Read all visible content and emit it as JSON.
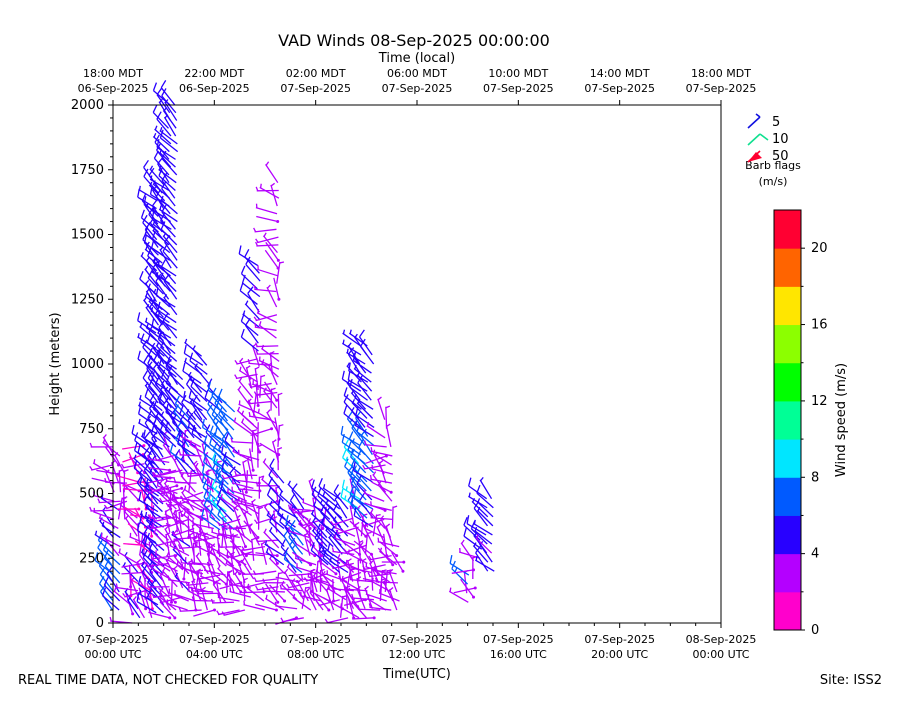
{
  "chart_data": {
    "type": "wind-barb",
    "title": "VAD Winds 08-Sep-2025 00:00:00",
    "xlabel_bottom": "Time(UTC)",
    "xlabel_top": "Time (local)",
    "ylabel": "Height (meters)",
    "ylim": [
      0,
      2000
    ],
    "y_ticks": [
      "0",
      "250",
      "500",
      "750",
      "1000",
      "1250",
      "1500",
      "1750",
      "2000"
    ],
    "x_ticks_bottom": [
      {
        "line1": "07-Sep-2025",
        "line2": "00:00 UTC"
      },
      {
        "line1": "07-Sep-2025",
        "line2": "04:00 UTC"
      },
      {
        "line1": "07-Sep-2025",
        "line2": "08:00 UTC"
      },
      {
        "line1": "07-Sep-2025",
        "line2": "12:00 UTC"
      },
      {
        "line1": "07-Sep-2025",
        "line2": "16:00 UTC"
      },
      {
        "line1": "07-Sep-2025",
        "line2": "20:00 UTC"
      },
      {
        "line1": "08-Sep-2025",
        "line2": "00:00 UTC"
      }
    ],
    "x_ticks_top": [
      {
        "line1": "18:00 MDT",
        "line2": "06-Sep-2025"
      },
      {
        "line1": "22:00 MDT",
        "line2": "06-Sep-2025"
      },
      {
        "line1": "02:00 MDT",
        "line2": "07-Sep-2025"
      },
      {
        "line1": "06:00 MDT",
        "line2": "07-Sep-2025"
      },
      {
        "line1": "10:00 MDT",
        "line2": "07-Sep-2025"
      },
      {
        "line1": "14:00 MDT",
        "line2": "07-Sep-2025"
      },
      {
        "line1": "18:00 MDT",
        "line2": "07-Sep-2025"
      }
    ],
    "legend": {
      "placement": "top-right",
      "entries": [
        {
          "label": "5",
          "color": "#1010e0"
        },
        {
          "label": "10",
          "color": "#10e090"
        },
        {
          "label": "50",
          "color": "#ff0030"
        }
      ],
      "caption_line1": "Barb flags",
      "caption_line2": "(m/s)"
    },
    "colorbar": {
      "label": "Wind speed (m/s)",
      "range": [
        0,
        22
      ],
      "ticks": [
        "0",
        "4",
        "8",
        "12",
        "16",
        "20"
      ],
      "colors": [
        "#ff00cc",
        "#b400ff",
        "#2800ff",
        "#005aff",
        "#00e6ff",
        "#00ff96",
        "#00ff00",
        "#8cff00",
        "#ffe600",
        "#ff6400",
        "#ff0032"
      ]
    },
    "columns": [
      {
        "t": 0.0,
        "h0": 50,
        "h1": 700,
        "s": [
          7,
          4,
          3
        ]
      },
      {
        "t": 0.25,
        "h0": 50,
        "h1": 650,
        "s": [
          6,
          4,
          3
        ]
      },
      {
        "t": 0.5,
        "h0": 400,
        "h1": 600,
        "s": [
          3,
          3,
          3
        ]
      },
      {
        "t": 0.75,
        "h0": 0,
        "h1": 150,
        "s": [
          3,
          3,
          2
        ]
      },
      {
        "t": 1.0,
        "h0": 20,
        "h1": 600,
        "s": [
          4,
          3,
          2
        ]
      },
      {
        "t": 1.25,
        "h0": 20,
        "h1": 700,
        "s": [
          3,
          2,
          2
        ]
      },
      {
        "t": 1.5,
        "h0": 20,
        "h1": 700,
        "s": [
          2,
          2,
          5
        ]
      },
      {
        "t": 1.75,
        "h0": 40,
        "h1": 1700,
        "s": [
          5,
          5,
          5
        ]
      },
      {
        "t": 2.0,
        "h0": 40,
        "h1": 1700,
        "s": [
          5,
          5,
          5
        ]
      },
      {
        "t": 2.25,
        "h0": 20,
        "h1": 2000,
        "s": [
          3,
          5,
          5
        ]
      },
      {
        "t": 2.5,
        "h0": 20,
        "h1": 2000,
        "s": [
          3,
          5,
          5
        ]
      },
      {
        "t": 2.75,
        "h0": 100,
        "h1": 950,
        "s": [
          3,
          3,
          5
        ]
      },
      {
        "t": 3.0,
        "h0": 50,
        "h1": 800,
        "s": [
          4,
          3,
          6
        ]
      },
      {
        "t": 3.25,
        "h0": 50,
        "h1": 800,
        "s": [
          3,
          3,
          5
        ]
      },
      {
        "t": 3.5,
        "h0": 50,
        "h1": 1050,
        "s": [
          3,
          3,
          5
        ]
      },
      {
        "t": 3.75,
        "h0": 50,
        "h1": 1000,
        "s": [
          3,
          3,
          5
        ]
      },
      {
        "t": 4.0,
        "h0": 50,
        "h1": 600,
        "s": [
          3,
          3,
          3
        ]
      },
      {
        "t": 4.25,
        "h0": 80,
        "h1": 880,
        "s": [
          3,
          7,
          6
        ]
      },
      {
        "t": 4.5,
        "h0": 80,
        "h1": 850,
        "s": [
          3,
          8,
          7
        ]
      },
      {
        "t": 4.75,
        "h0": 80,
        "h1": 840,
        "s": [
          3,
          6,
          6
        ]
      },
      {
        "t": 5.0,
        "h0": 50,
        "h1": 650,
        "s": [
          3,
          3,
          5
        ]
      },
      {
        "t": 5.25,
        "h0": 50,
        "h1": 600,
        "s": [
          3,
          3,
          3
        ]
      },
      {
        "t": 5.5,
        "h0": 100,
        "h1": 950,
        "s": [
          3,
          3,
          3
        ]
      },
      {
        "t": 5.75,
        "h0": 300,
        "h1": 1400,
        "s": [
          3,
          3,
          5
        ]
      },
      {
        "t": 6.0,
        "h0": 50,
        "h1": 300,
        "s": [
          3,
          3,
          3
        ]
      },
      {
        "t": 6.25,
        "h0": 750,
        "h1": 1000,
        "s": [
          3,
          3,
          3
        ]
      },
      {
        "t": 6.5,
        "h0": 50,
        "h1": 1700,
        "s": [
          3,
          3,
          3
        ]
      },
      {
        "t": 6.75,
        "h0": 50,
        "h1": 560,
        "s": [
          3,
          5,
          5
        ]
      },
      {
        "t": 7.25,
        "h0": 20,
        "h1": 450,
        "s": [
          3,
          6,
          5
        ]
      },
      {
        "t": 7.5,
        "h0": 20,
        "h1": 500,
        "s": [
          3,
          7,
          5
        ]
      },
      {
        "t": 7.75,
        "h0": 50,
        "h1": 450,
        "s": [
          3,
          3,
          3
        ]
      },
      {
        "t": 8.0,
        "h0": 50,
        "h1": 500,
        "s": [
          3,
          3,
          3
        ]
      },
      {
        "t": 8.25,
        "h0": 50,
        "h1": 450,
        "s": [
          3,
          3,
          3
        ]
      },
      {
        "t": 8.5,
        "h0": 50,
        "h1": 500,
        "s": [
          3,
          5,
          5
        ]
      },
      {
        "t": 8.75,
        "h0": 50,
        "h1": 500,
        "s": [
          3,
          5,
          5
        ]
      },
      {
        "t": 9.0,
        "h0": 20,
        "h1": 480,
        "s": [
          3,
          5,
          5
        ]
      },
      {
        "t": 9.25,
        "h0": 20,
        "h1": 450,
        "s": [
          3,
          5,
          5
        ]
      },
      {
        "t": 9.5,
        "h0": 20,
        "h1": 500,
        "s": [
          3,
          3,
          3
        ]
      },
      {
        "t": 9.75,
        "h0": 20,
        "h1": 1100,
        "s": [
          3,
          8,
          5
        ]
      },
      {
        "t": 10.0,
        "h0": 20,
        "h1": 1100,
        "s": [
          3,
          7,
          5
        ]
      },
      {
        "t": 10.25,
        "h0": 20,
        "h1": 1050,
        "s": [
          3,
          6,
          5
        ]
      },
      {
        "t": 10.5,
        "h0": 50,
        "h1": 200,
        "s": [
          3,
          3,
          3
        ]
      },
      {
        "t": 10.75,
        "h0": 50,
        "h1": 800,
        "s": [
          3,
          3,
          3
        ]
      },
      {
        "t": 11.0,
        "h0": 50,
        "h1": 700,
        "s": [
          3,
          3,
          3
        ]
      },
      {
        "t": 11.25,
        "h0": 50,
        "h1": 300,
        "s": [
          3,
          3,
          3
        ]
      },
      {
        "t": 11.5,
        "h0": 200,
        "h1": 250,
        "s": [
          3,
          3,
          3
        ]
      },
      {
        "t": 14.0,
        "h0": 80,
        "h1": 200,
        "s": [
          4,
          7,
          7
        ]
      },
      {
        "t": 14.25,
        "h0": 100,
        "h1": 250,
        "s": [
          3,
          3,
          3
        ]
      },
      {
        "t": 14.5,
        "h0": 250,
        "h1": 350,
        "s": [
          3,
          5,
          5
        ]
      },
      {
        "t": 14.75,
        "h0": 200,
        "h1": 480,
        "s": [
          5,
          5,
          5
        ]
      },
      {
        "t": 15.0,
        "h0": 200,
        "h1": 500,
        "s": [
          4,
          4,
          5
        ]
      }
    ]
  },
  "footer": {
    "disclaimer": "REAL TIME DATA, NOT CHECKED FOR QUALITY",
    "site": "Site: ISS2"
  }
}
